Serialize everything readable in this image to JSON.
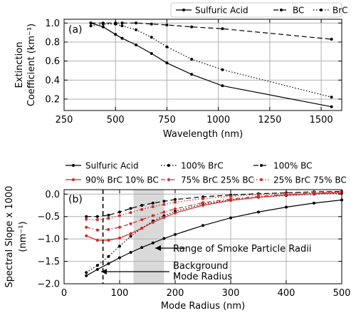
{
  "chart_data": [
    {
      "type": "line",
      "panel_label": "(a)",
      "xlabel": "Wavelength (nm)",
      "ylabel_line1": "Extinction",
      "ylabel_line2": "Coefficient (km⁻¹)",
      "xlim": [
        250,
        1600
      ],
      "ylim": [
        0.08,
        1.04
      ],
      "xticks": [
        250,
        500,
        750,
        1000,
        1250,
        1500
      ],
      "yticks": [
        0.2,
        0.4,
        0.6,
        0.8,
        1.0
      ],
      "ytick_labels": [
        "0.2",
        "0.4",
        "0.6",
        "0.8",
        "1.0"
      ],
      "grid": true,
      "legend_position": "above-right",
      "series": [
        {
          "name": "Sulfuric Acid",
          "style": "solid",
          "color": "#000000",
          "x": [
            380,
            440,
            500,
            532,
            600,
            675,
            750,
            870,
            1020,
            1550
          ],
          "y": [
            1.0,
            0.96,
            0.88,
            0.84,
            0.77,
            0.68,
            0.58,
            0.46,
            0.34,
            0.12
          ]
        },
        {
          "name": "BC",
          "style": "dashed",
          "color": "#000000",
          "x": [
            380,
            440,
            500,
            532,
            600,
            675,
            750,
            870,
            1020,
            1550
          ],
          "y": [
            1.0,
            1.0,
            1.0,
            1.0,
            1.0,
            0.99,
            0.98,
            0.96,
            0.94,
            0.83
          ]
        },
        {
          "name": "BrC",
          "style": "dotted",
          "color": "#000000",
          "x": [
            380,
            440,
            500,
            532,
            600,
            675,
            750,
            870,
            1020,
            1550
          ],
          "y": [
            0.97,
            0.99,
            0.99,
            0.97,
            0.93,
            0.85,
            0.75,
            0.62,
            0.51,
            0.22
          ]
        }
      ]
    },
    {
      "type": "line",
      "panel_label": "(b)",
      "xlabel": "Mode Radius (nm)",
      "ylabel_line1": "Spectral Slope x 1000",
      "ylabel_line2": "(nm⁻¹)",
      "xlim": [
        0,
        500
      ],
      "ylim": [
        -2.0,
        0.1
      ],
      "xticks": [
        0,
        100,
        200,
        300,
        400,
        500
      ],
      "yticks": [
        -2.0,
        -1.5,
        -1.0,
        -0.5,
        0.0
      ],
      "ytick_labels": [
        "−2.0",
        "−1.5",
        "−1.0",
        "−0.5",
        "0.0"
      ],
      "grid": true,
      "legend_position": "above",
      "shaded_region": {
        "x": [
          125,
          180
        ],
        "label": "Range of Smoke Particle Radii"
      },
      "vertical_line": {
        "x": 70,
        "label_line1": "Background",
        "label_line2": "Mode Radius"
      },
      "x": [
        40,
        60,
        80,
        100,
        120,
        140,
        160,
        180,
        200,
        250,
        300,
        350,
        400,
        450,
        500
      ],
      "series": [
        {
          "name": "Sulfuric Acid",
          "style": "solid",
          "color": "#000000",
          "values": [
            -1.82,
            -1.68,
            -1.55,
            -1.42,
            -1.3,
            -1.19,
            -1.09,
            -0.99,
            -0.9,
            -0.7,
            -0.53,
            -0.4,
            -0.29,
            -0.2,
            -0.13
          ]
        },
        {
          "name": "100% BrC",
          "style": "dotted",
          "color": "#000000",
          "values": [
            -1.75,
            -1.59,
            -1.39,
            -1.16,
            -0.94,
            -0.76,
            -0.6,
            -0.48,
            -0.38,
            -0.22,
            -0.13,
            -0.07,
            -0.03,
            0.0,
            0.02
          ]
        },
        {
          "name": "100% BC",
          "style": "dashed",
          "color": "#000000",
          "values": [
            -0.5,
            -0.5,
            -0.47,
            -0.4,
            -0.32,
            -0.25,
            -0.2,
            -0.16,
            -0.12,
            -0.06,
            -0.02,
            0.01,
            0.03,
            0.05,
            0.06
          ]
        },
        {
          "name": "90% BrC 10% BC",
          "style": "solid",
          "color": "#d62728",
          "values": [
            -0.93,
            -1.03,
            -1.03,
            -0.98,
            -0.88,
            -0.76,
            -0.63,
            -0.52,
            -0.42,
            -0.25,
            -0.14,
            -0.07,
            -0.02,
            0.01,
            0.03
          ]
        },
        {
          "name": "75% BrC 25% BC",
          "style": "dashdot",
          "color": "#d62728",
          "values": [
            -0.74,
            -0.8,
            -0.79,
            -0.74,
            -0.66,
            -0.57,
            -0.48,
            -0.4,
            -0.33,
            -0.19,
            -0.11,
            -0.05,
            -0.01,
            0.02,
            0.04
          ]
        },
        {
          "name": "25% BrC 75% BC",
          "style": "dotted",
          "color": "#d62728",
          "values": [
            -0.56,
            -0.57,
            -0.54,
            -0.48,
            -0.41,
            -0.34,
            -0.28,
            -0.23,
            -0.18,
            -0.1,
            -0.05,
            -0.01,
            0.02,
            0.04,
            0.05
          ]
        }
      ]
    }
  ]
}
